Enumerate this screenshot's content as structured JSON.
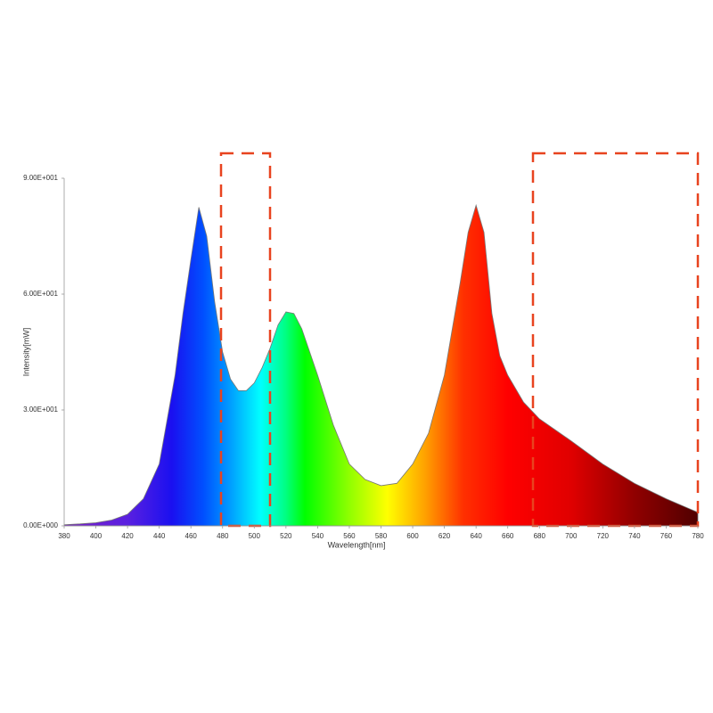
{
  "chart_data": {
    "type": "area",
    "xlabel": "Wavelength[nm]",
    "ylabel": "Intensity[mW]",
    "x": [
      380,
      390,
      400,
      410,
      420,
      430,
      440,
      450,
      455,
      460,
      465,
      470,
      475,
      480,
      485,
      490,
      495,
      500,
      505,
      510,
      515,
      520,
      525,
      530,
      540,
      550,
      560,
      570,
      580,
      590,
      600,
      610,
      620,
      630,
      635,
      640,
      645,
      650,
      655,
      660,
      670,
      680,
      700,
      720,
      740,
      760,
      780
    ],
    "values": [
      0.3,
      0.5,
      0.8,
      1.5,
      3,
      7,
      16,
      39,
      55,
      69,
      82.5,
      75,
      58,
      45,
      38,
      35,
      35,
      37,
      41,
      46,
      52,
      55.4,
      55,
      51,
      39,
      26,
      16,
      12,
      10.4,
      11,
      16,
      24,
      39,
      63,
      76,
      83,
      76,
      55,
      44,
      39,
      32,
      27.7,
      22,
      16,
      11,
      7,
      3.5
    ],
    "xlim": [
      380,
      780
    ],
    "ylim": [
      0,
      90
    ],
    "xticks": [
      380,
      400,
      420,
      440,
      460,
      480,
      500,
      520,
      540,
      560,
      580,
      600,
      620,
      640,
      660,
      680,
      700,
      720,
      740,
      760,
      780
    ],
    "yticks": [
      {
        "value": 0,
        "label": "0.00E+000"
      },
      {
        "value": 30,
        "label": "3.00E+001"
      },
      {
        "value": 60,
        "label": "6.00E+001"
      },
      {
        "value": 90,
        "label": "9.00E+001"
      }
    ],
    "stroke": "#777777"
  }
}
